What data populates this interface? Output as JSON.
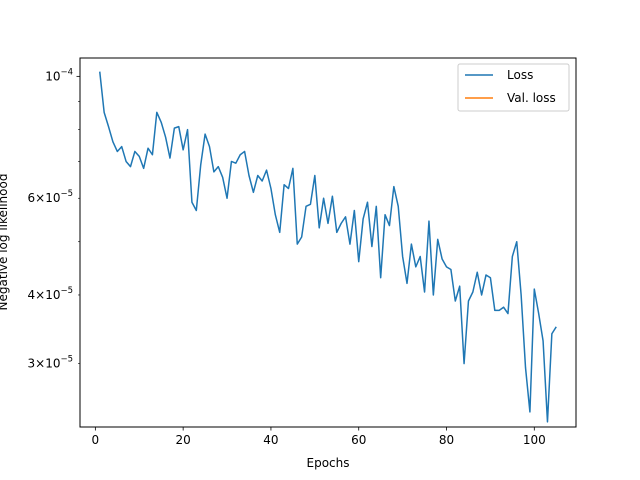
{
  "chart_data": {
    "type": "line",
    "title": "",
    "xlabel": "Epochs",
    "ylabel": "Negative log likelihood",
    "xlim": [
      -3.5,
      109.5
    ],
    "ylim": [
      2.3e-05,
      0.000108
    ],
    "yscale": "log",
    "grid": false,
    "legend_position": "top-right",
    "x_ticks": [
      {
        "value": 0,
        "label": "0"
      },
      {
        "value": 20,
        "label": "20"
      },
      {
        "value": 40,
        "label": "40"
      },
      {
        "value": 60,
        "label": "60"
      },
      {
        "value": 80,
        "label": "80"
      },
      {
        "value": 100,
        "label": "100"
      }
    ],
    "y_ticks_major": [
      {
        "value": 0.0001,
        "base": "10",
        "exp": "−4"
      }
    ],
    "y_ticks_minor": [
      {
        "value": 3e-05,
        "mant": "3",
        "base": "10",
        "exp": "−5"
      },
      {
        "value": 4e-05,
        "mant": "4",
        "base": "10",
        "exp": "−5"
      },
      {
        "value": 5e-05,
        "mant": "",
        "base": "",
        "exp": ""
      },
      {
        "value": 6e-05,
        "mant": "6",
        "base": "10",
        "exp": "−5"
      },
      {
        "value": 7e-05,
        "mant": "",
        "base": "",
        "exp": ""
      },
      {
        "value": 8e-05,
        "mant": "",
        "base": "",
        "exp": ""
      },
      {
        "value": 9e-05,
        "mant": "",
        "base": "",
        "exp": ""
      }
    ],
    "series": [
      {
        "name": "Loss",
        "color": "#1f77b4",
        "x": [
          1,
          2,
          3,
          4,
          5,
          6,
          7,
          8,
          9,
          10,
          11,
          12,
          13,
          14,
          15,
          16,
          17,
          18,
          19,
          20,
          21,
          22,
          23,
          24,
          25,
          26,
          27,
          28,
          29,
          30,
          31,
          32,
          33,
          34,
          35,
          36,
          37,
          38,
          39,
          40,
          41,
          42,
          43,
          44,
          45,
          46,
          47,
          48,
          49,
          50,
          51,
          52,
          53,
          54,
          55,
          56,
          57,
          58,
          59,
          60,
          61,
          62,
          63,
          64,
          65,
          66,
          67,
          68,
          69,
          70,
          71,
          72,
          73,
          74,
          75,
          76,
          77,
          78,
          79,
          80,
          81,
          82,
          83,
          84,
          85,
          86,
          87,
          88,
          89,
          90,
          91,
          92,
          93,
          94,
          95,
          96,
          97,
          98,
          99,
          100,
          101,
          102,
          103,
          104,
          105
        ],
        "y": [
          0.000102,
          8.6e-05,
          8.1e-05,
          7.6e-05,
          7.3e-05,
          7.45e-05,
          7e-05,
          6.85e-05,
          7.3e-05,
          7.15e-05,
          6.8e-05,
          7.4e-05,
          7.2e-05,
          8.6e-05,
          8.25e-05,
          7.75e-05,
          7.1e-05,
          8.05e-05,
          8.1e-05,
          7.35e-05,
          8e-05,
          5.9e-05,
          5.7e-05,
          6.9e-05,
          7.85e-05,
          7.45e-05,
          6.7e-05,
          6.85e-05,
          6.55e-05,
          6e-05,
          7e-05,
          6.95e-05,
          7.2e-05,
          7.3e-05,
          6.6e-05,
          6.15e-05,
          6.6e-05,
          6.45e-05,
          6.75e-05,
          6.25e-05,
          5.6e-05,
          5.2e-05,
          6.35e-05,
          6.25e-05,
          6.8e-05,
          4.95e-05,
          5.1e-05,
          5.8e-05,
          5.85e-05,
          6.6e-05,
          5.3e-05,
          6e-05,
          5.4e-05,
          6.05e-05,
          5.2e-05,
          5.4e-05,
          5.55e-05,
          4.95e-05,
          5.7e-05,
          4.6e-05,
          5.5e-05,
          5.9e-05,
          4.9e-05,
          5.8e-05,
          4.3e-05,
          5.6e-05,
          5.35e-05,
          6.3e-05,
          5.8e-05,
          4.7e-05,
          4.2e-05,
          4.95e-05,
          4.5e-05,
          4.7e-05,
          4.05e-05,
          5.45e-05,
          4e-05,
          5.05e-05,
          4.65e-05,
          4.5e-05,
          4.45e-05,
          3.9e-05,
          4.15e-05,
          3e-05,
          3.9e-05,
          4.05e-05,
          4.4e-05,
          4e-05,
          4.35e-05,
          4.3e-05,
          3.75e-05,
          3.75e-05,
          3.8e-05,
          3.7e-05,
          4.7e-05,
          5e-05,
          4e-05,
          2.95e-05,
          2.45e-05,
          4.1e-05,
          3.7e-05,
          3.3e-05,
          2.35e-05,
          3.4e-05,
          3.5e-05
        ]
      },
      {
        "name": "Val. loss",
        "color": "#ff7f0e",
        "x": [],
        "y": []
      }
    ]
  }
}
